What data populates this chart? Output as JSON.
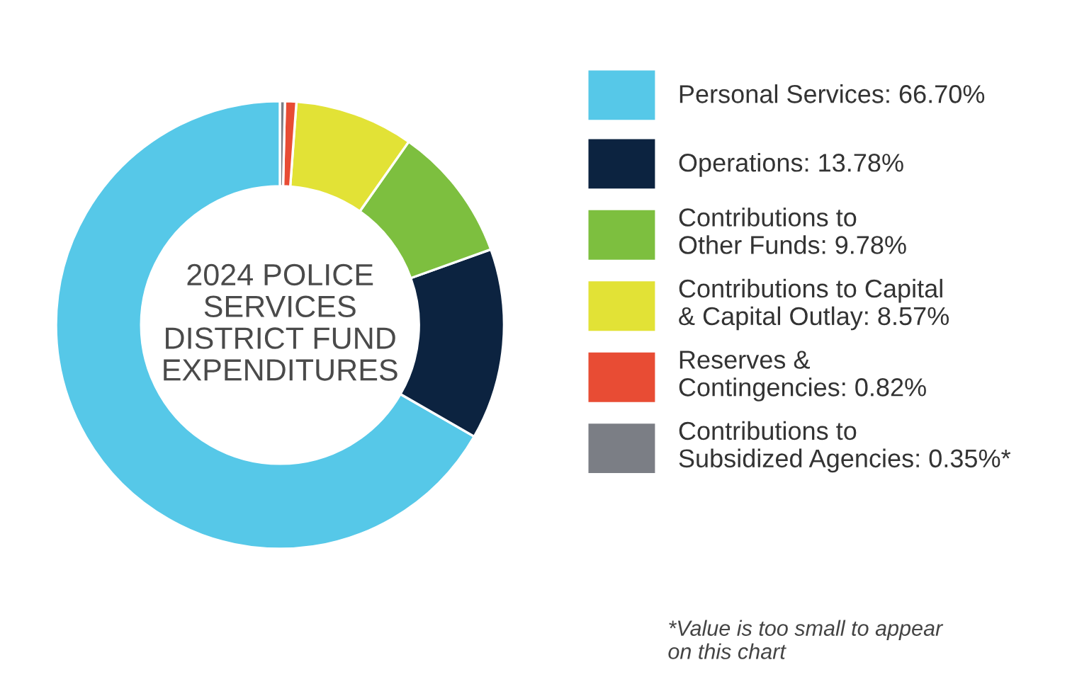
{
  "chart_data": {
    "type": "donut",
    "title": "2024 POLICE\nSERVICES\nDISTRICT FUND\nEXPENDITURES",
    "categories": [
      "Personal Services",
      "Operations",
      "Contributions to\nOther Funds",
      "Contributions to Capital\n& Capital Outlay",
      "Reserves &\nContingencies",
      "Contributions to\nSubsidized Agencies"
    ],
    "values": [
      66.7,
      13.78,
      9.78,
      8.57,
      0.82,
      0.35
    ],
    "value_labels": [
      "66.70%",
      "13.78%",
      "9.78%",
      "8.57%",
      "0.82%",
      "0.35%*"
    ],
    "colors": [
      "#56c8e8",
      "#0c2340",
      "#7dbf3f",
      "#e2e236",
      "#e84c34",
      "#7b7e85"
    ],
    "legend": "right",
    "annotations": [
      "*Value is too small to appear\non this chart"
    ]
  }
}
